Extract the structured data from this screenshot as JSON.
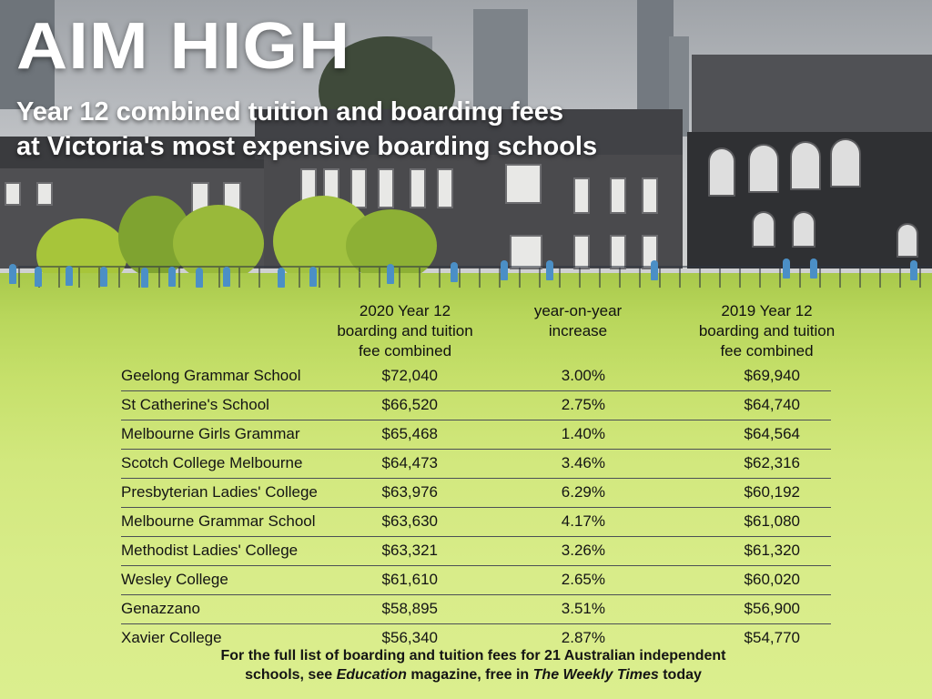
{
  "header": {
    "title": "AIM HIGH",
    "subtitle_line1": "Year 12 combined tuition and boarding fees",
    "subtitle_line2": "at Victoria's most expensive boarding schools"
  },
  "table": {
    "columns": [
      {
        "line1": "2020 Year 12",
        "line2": "boarding and tuition",
        "line3": "fee combined"
      },
      {
        "line1": "year-on-year",
        "line2": "increase"
      },
      {
        "line1": "2019 Year 12",
        "line2": "boarding and tuition",
        "line3": "fee combined"
      }
    ],
    "rows": [
      {
        "school": "Geelong Grammar School",
        "fee_2020": "$72,040",
        "increase": "3.00%",
        "fee_2019": "$69,940"
      },
      {
        "school": "St Catherine's School",
        "fee_2020": "$66,520",
        "increase": "2.75%",
        "fee_2019": "$64,740"
      },
      {
        "school": "Melbourne Girls Grammar",
        "fee_2020": "$65,468",
        "increase": "1.40%",
        "fee_2019": "$64,564"
      },
      {
        "school": "Scotch College Melbourne",
        "fee_2020": "$64,473",
        "increase": "3.46%",
        "fee_2019": "$62,316"
      },
      {
        "school": "Presbyterian Ladies' College",
        "fee_2020": "$63,976",
        "increase": "6.29%",
        "fee_2019": "$60,192"
      },
      {
        "school": "Melbourne Grammar School",
        "fee_2020": "$63,630",
        "increase": "4.17%",
        "fee_2019": "$61,080"
      },
      {
        "school": "Methodist Ladies' College",
        "fee_2020": "$63,321",
        "increase": "3.26%",
        "fee_2019": "$61,320"
      },
      {
        "school": "Wesley College",
        "fee_2020": "$61,610",
        "increase": "2.65%",
        "fee_2019": "$60,020"
      },
      {
        "school": "Genazzano",
        "fee_2020": "$58,895",
        "increase": "3.51%",
        "fee_2019": "$56,900"
      },
      {
        "school": "Xavier College",
        "fee_2020": "$56,340",
        "increase": "2.87%",
        "fee_2019": "$54,770"
      }
    ]
  },
  "footnote": {
    "line1": "For the full list of boarding and tuition fees for 21 Australian independent",
    "line2_prefix": "schools, see ",
    "magazine": "Education",
    "line2_middle": " magazine, free in ",
    "newspaper": "The Weekly Times",
    "line2_suffix": " today"
  },
  "colors": {
    "text_dark": "#141414",
    "title_white": "#ffffff",
    "grass_light": "#d8ec89",
    "grass_mid": "#b8d65b",
    "row_rule": "#4b4f55"
  }
}
